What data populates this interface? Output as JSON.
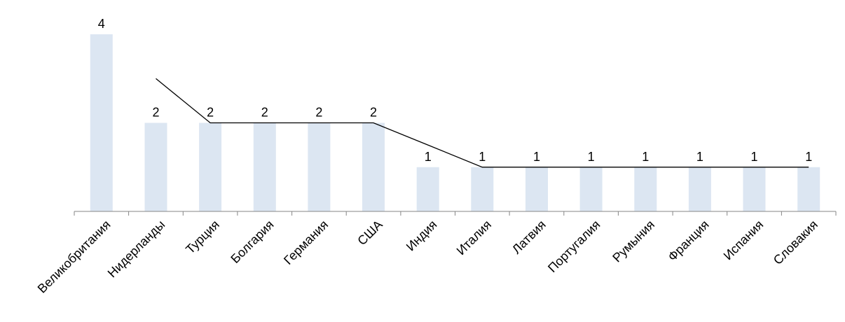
{
  "chart_data": {
    "type": "bar",
    "categories": [
      "Великобритания",
      "Нидерланды",
      "Турция",
      "Болгария",
      "Германия",
      "США",
      "Индия",
      "Италия",
      "Латвия",
      "Португалия",
      "Румыния",
      "Франция",
      "Испания",
      "Словакия"
    ],
    "values": [
      4,
      2,
      2,
      2,
      2,
      2,
      1,
      1,
      1,
      1,
      1,
      1,
      1,
      1
    ],
    "trendline": {
      "type": "moving-average",
      "period": 2,
      "values": [
        null,
        3,
        2,
        2,
        2,
        2,
        1.5,
        1,
        1,
        1,
        1,
        1,
        1,
        1
      ]
    },
    "title": "",
    "xlabel": "",
    "ylabel": "",
    "ylim": [
      0,
      4
    ],
    "grid": false,
    "legend": "none",
    "colors": {
      "bar": "#dce6f2",
      "line": "#000000",
      "axis": "#868686",
      "text": "#000000"
    }
  }
}
